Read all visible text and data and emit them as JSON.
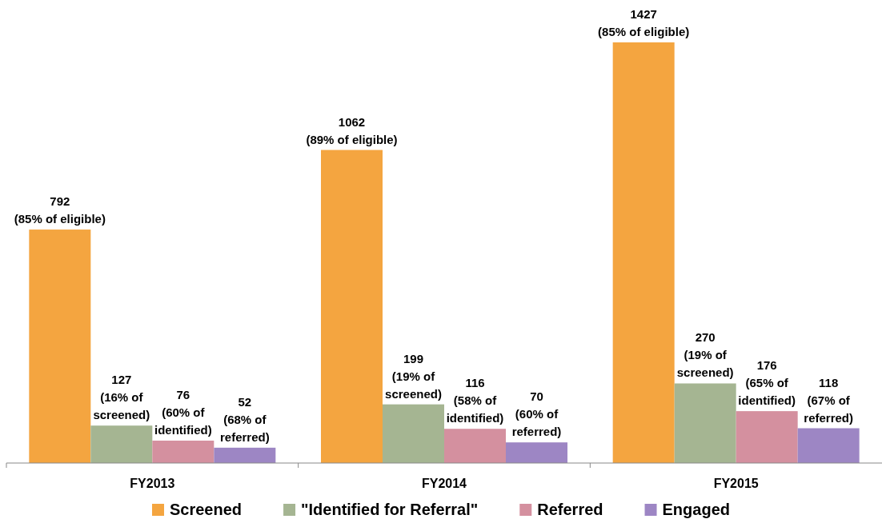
{
  "chart_data": {
    "type": "bar",
    "categories": [
      "FY2013",
      "FY2014",
      "FY2015"
    ],
    "legend": "bottom",
    "series": [
      {
        "name": "Screened",
        "color": "#f4a540",
        "values": [
          792,
          1062,
          1427
        ],
        "value_labels": [
          "792 (85% of eligible)",
          "1062 (89% of eligible)",
          "1427 (85% of eligible)"
        ]
      },
      {
        "name": "\"Identified for Referral\"",
        "color": "#a5b592",
        "values": [
          127,
          199,
          270
        ],
        "value_labels": [
          "127 (16% of screened)",
          "199 (19% of screened)",
          "270 (19% of screened)"
        ]
      },
      {
        "name": "Referred",
        "color": "#d4909f",
        "values": [
          76,
          116,
          176
        ],
        "value_labels": [
          "76 (60% of identified)",
          "116 (58% of identified)",
          "176 (65% of identified)"
        ]
      },
      {
        "name": "Engaged",
        "color": "#9d86c4",
        "values": [
          52,
          70,
          118
        ],
        "value_labels": [
          "52 (68% of referred)",
          "70 (60% of referred)",
          "118 (67% of referred)"
        ]
      }
    ]
  }
}
